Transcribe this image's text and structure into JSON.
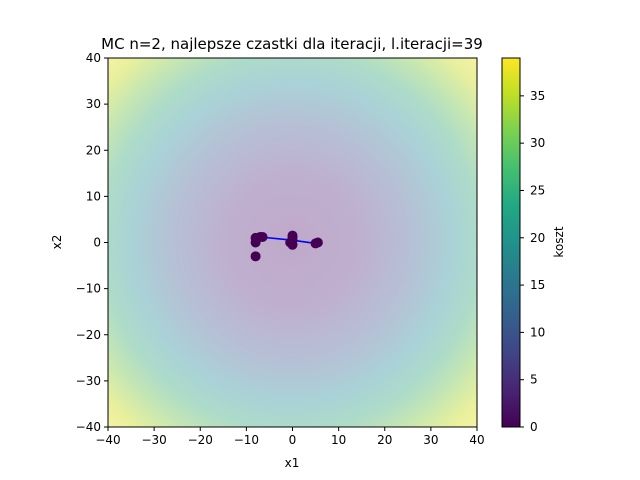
{
  "chart_data": {
    "type": "scatter",
    "title": "MC n=2, najlepsze czastki dla iteracji, l.iteracji=39",
    "xlabel": "x1",
    "ylabel": "x2",
    "xlim": [
      -40,
      40
    ],
    "ylim": [
      -40,
      40
    ],
    "x_ticks": [
      -40,
      -30,
      -20,
      -10,
      0,
      10,
      20,
      30,
      40
    ],
    "y_ticks": [
      -40,
      -30,
      -20,
      -10,
      0,
      10,
      20,
      30,
      40
    ],
    "x_tick_labels": [
      "−40",
      "−30",
      "−20",
      "−10",
      "0",
      "10",
      "20",
      "30",
      "40"
    ],
    "y_tick_labels": [
      "−40",
      "−30",
      "−20",
      "−10",
      "0",
      "10",
      "20",
      "30",
      "40"
    ],
    "background": "cost surface x1^2/40 + x2^2/40, viridis colormap, semi-transparent",
    "grid": false,
    "points": [
      {
        "x": -8.0,
        "y": -3.0
      },
      {
        "x": -8.0,
        "y": 0.0
      },
      {
        "x": -8.0,
        "y": 1.0
      },
      {
        "x": -7.0,
        "y": 1.2
      },
      {
        "x": -6.5,
        "y": 1.2
      },
      {
        "x": 0.0,
        "y": 1.5
      },
      {
        "x": 0.0,
        "y": 1.0
      },
      {
        "x": 0.0,
        "y": 0.5
      },
      {
        "x": -0.5,
        "y": 0.0
      },
      {
        "x": 0.0,
        "y": -0.5
      },
      {
        "x": 5.0,
        "y": -0.2
      },
      {
        "x": 5.5,
        "y": 0.0
      }
    ],
    "path": [
      {
        "x": -7.0,
        "y": 1.2
      },
      {
        "x": 0.0,
        "y": 0.5
      },
      {
        "x": 5.0,
        "y": -0.2
      }
    ],
    "colors": {
      "points": "#440154",
      "path": "#0000ff"
    },
    "colorbar": {
      "label": "koszt",
      "min": 0,
      "max": 39,
      "ticks": [
        0,
        5,
        10,
        15,
        20,
        25,
        30,
        35
      ],
      "tick_labels": [
        "0",
        "5",
        "10",
        "15",
        "20",
        "25",
        "30",
        "35"
      ],
      "colormap": "viridis"
    }
  }
}
